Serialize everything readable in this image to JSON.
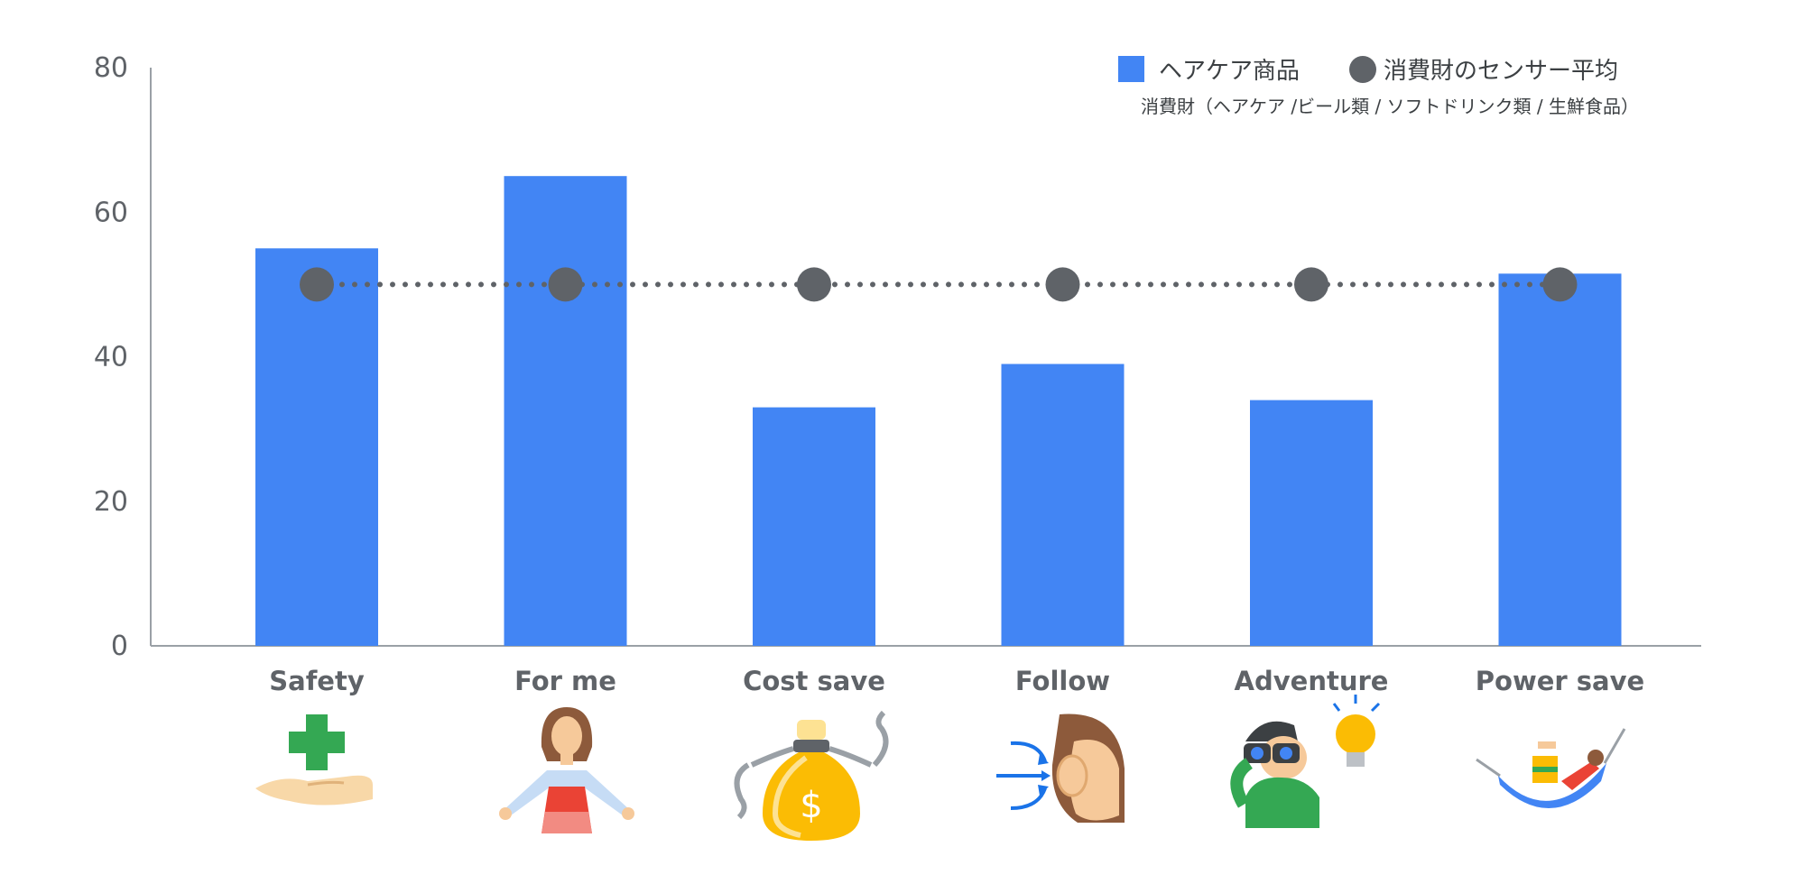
{
  "chart_data": {
    "type": "bar",
    "categories": [
      "Safety",
      "For me",
      "Cost save",
      "Follow",
      "Adventure",
      "Power save"
    ],
    "series": [
      {
        "name": "ヘアケア商品",
        "kind": "bar",
        "color": "#4285f4",
        "values": [
          55,
          65,
          33,
          39,
          34,
          51.5
        ]
      },
      {
        "name": "消費財のセンサー平均",
        "kind": "line-dotted-markers",
        "color": "#5f6368",
        "values": [
          50,
          50,
          50,
          50,
          50,
          50
        ]
      }
    ],
    "legend_note": "消費財（ヘアケア /ビール類 / ソフトドリンク類 / 生鮮食品）",
    "ylim": [
      0,
      80
    ],
    "yticks": [
      0,
      20,
      40,
      60,
      80
    ],
    "grid": false,
    "legend_position": "top-right",
    "category_icons": [
      "plus-hand-icon",
      "woman-icon",
      "money-bag-icon",
      "listening-ear-icon",
      "binoculars-lightbulb-icon",
      "hammock-icon"
    ],
    "colors": {
      "bar": "#4285f4",
      "marker": "#5f6368",
      "axis": "#9aa0a6",
      "text": "#5f6368"
    }
  }
}
